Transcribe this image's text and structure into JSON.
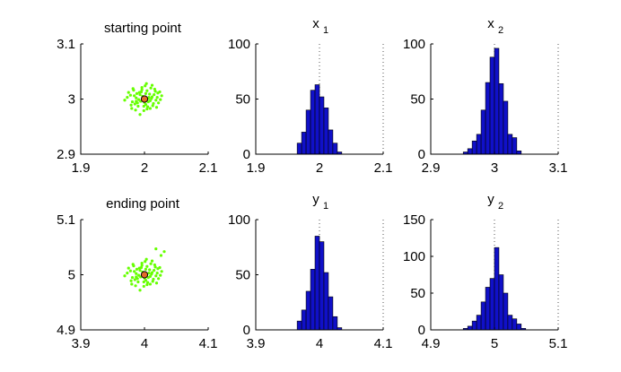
{
  "chart_data": [
    {
      "type": "scatter",
      "title": "starting point",
      "xlim": [
        1.9,
        2.1
      ],
      "ylim": [
        2.9,
        3.1
      ],
      "xticks": [
        "1.9",
        "2",
        "2.1"
      ],
      "yticks": [
        "2.9",
        "3",
        "3.1"
      ],
      "xticks_v": [
        1.9,
        2.0,
        2.1
      ],
      "yticks_v": [
        2.9,
        3.0,
        3.1
      ],
      "point_color": "#66ff00",
      "marker_color": "#e36c2a",
      "center": [
        2.0,
        3.0
      ],
      "points": [
        [
          1.978,
          3.007
        ],
        [
          1.985,
          2.991
        ],
        [
          1.992,
          3.012
        ],
        [
          2.005,
          2.986
        ],
        [
          2.012,
          3.004
        ],
        [
          2.018,
          2.998
        ],
        [
          1.996,
          3.021
        ],
        [
          2.004,
          3.015
        ],
        [
          1.987,
          3.002
        ],
        [
          2.009,
          2.983
        ],
        [
          1.981,
          2.995
        ],
        [
          2.021,
          3.011
        ],
        [
          2.014,
          2.992
        ],
        [
          1.999,
          2.979
        ],
        [
          2.001,
          3.024
        ],
        [
          1.973,
          3.003
        ],
        [
          2.025,
          2.999
        ],
        [
          1.99,
          2.987
        ],
        [
          2.008,
          3.009
        ],
        [
          1.994,
          2.996
        ],
        [
          2.016,
          3.018
        ],
        [
          1.983,
          3.016
        ],
        [
          2.002,
          2.99
        ],
        [
          1.997,
          3.005
        ],
        [
          2.011,
          3.001
        ],
        [
          1.988,
          3.01
        ],
        [
          2.006,
          2.995
        ],
        [
          1.979,
          2.989
        ],
        [
          2.019,
          2.985
        ],
        [
          2.003,
          3.028
        ],
        [
          1.993,
          2.972
        ],
        [
          2.027,
          3.006
        ],
        [
          1.969,
          2.998
        ],
        [
          2.01,
          3.02
        ],
        [
          1.986,
          2.98
        ],
        [
          2.015,
          3.008
        ],
        [
          1.995,
          3.013
        ],
        [
          2.0,
          2.994
        ],
        [
          1.982,
          3.019
        ],
        [
          2.022,
          2.993
        ],
        [
          1.998,
          3.0
        ],
        [
          2.007,
          3.003
        ],
        [
          1.991,
          2.999
        ],
        [
          2.013,
          2.988
        ],
        [
          1.984,
          3.006
        ],
        [
          2.017,
          3.014
        ],
        [
          1.989,
          2.993
        ],
        [
          2.004,
          2.982
        ],
        [
          1.996,
          3.017
        ],
        [
          2.02,
          3.003
        ],
        [
          1.975,
          3.012
        ],
        [
          2.009,
          2.997
        ],
        [
          1.993,
          3.008
        ],
        [
          2.002,
          3.01
        ],
        [
          1.987,
          2.996
        ],
        [
          2.012,
          3.025
        ],
        [
          1.999,
          2.987
        ],
        [
          2.024,
          3.013
        ],
        [
          1.98,
          2.983
        ],
        [
          2.006,
          3.001
        ]
      ]
    },
    {
      "type": "bar",
      "title": "x",
      "title_sub": "1",
      "xlim": [
        1.9,
        2.1
      ],
      "ylim": [
        0,
        100
      ],
      "xticks": [
        "1.9",
        "2",
        "2.1"
      ],
      "yticks": [
        "0",
        "50",
        "100"
      ],
      "xticks_v": [
        1.9,
        2.0,
        2.1
      ],
      "yticks_v": [
        0,
        50,
        100
      ],
      "bar_color": "#1010c8",
      "edges": [
        1.965,
        1.972,
        1.979,
        1.986,
        1.993,
        2.0,
        2.007,
        2.014,
        2.021,
        2.028,
        2.035
      ],
      "values": [
        10,
        20,
        40,
        58,
        63,
        52,
        42,
        22,
        10,
        2
      ],
      "vline": 2.0
    },
    {
      "type": "bar",
      "title": "x",
      "title_sub": "2",
      "xlim": [
        2.9,
        3.1
      ],
      "ylim": [
        0,
        100
      ],
      "xticks": [
        "2.9",
        "3",
        "3.1"
      ],
      "yticks": [
        "0",
        "50",
        "100"
      ],
      "xticks_v": [
        2.9,
        3.0,
        3.1
      ],
      "yticks_v": [
        0,
        50,
        100
      ],
      "bar_color": "#1010c8",
      "edges": [
        2.951,
        2.958,
        2.965,
        2.972,
        2.979,
        2.986,
        2.993,
        3.0,
        3.007,
        3.014,
        3.021,
        3.028,
        3.035,
        3.042
      ],
      "values": [
        2,
        5,
        12,
        18,
        40,
        65,
        88,
        96,
        64,
        48,
        18,
        15,
        3
      ],
      "vline": 3.0
    },
    {
      "type": "scatter",
      "title": "ending point",
      "xlim": [
        3.9,
        4.1
      ],
      "ylim": [
        4.9,
        5.1
      ],
      "xticks": [
        "3.9",
        "4",
        "4.1"
      ],
      "yticks": [
        "4.9",
        "5",
        "5.1"
      ],
      "xticks_v": [
        3.9,
        4.0,
        4.1
      ],
      "yticks_v": [
        4.9,
        5.0,
        5.1
      ],
      "point_color": "#66ff00",
      "marker_color": "#e36c2a",
      "center": [
        4.0,
        5.0
      ],
      "points": [
        [
          3.978,
          5.007
        ],
        [
          3.985,
          4.991
        ],
        [
          3.992,
          5.012
        ],
        [
          4.005,
          4.986
        ],
        [
          4.012,
          5.004
        ],
        [
          4.018,
          4.998
        ],
        [
          3.996,
          5.021
        ],
        [
          4.004,
          5.015
        ],
        [
          3.987,
          5.002
        ],
        [
          4.009,
          4.983
        ],
        [
          3.981,
          4.995
        ],
        [
          4.021,
          5.011
        ],
        [
          4.014,
          4.992
        ],
        [
          3.999,
          4.979
        ],
        [
          4.001,
          5.024
        ],
        [
          3.973,
          5.003
        ],
        [
          4.025,
          4.999
        ],
        [
          3.99,
          4.987
        ],
        [
          4.008,
          5.009
        ],
        [
          3.994,
          4.996
        ],
        [
          4.016,
          5.018
        ],
        [
          3.983,
          5.016
        ],
        [
          4.002,
          4.99
        ],
        [
          3.997,
          5.005
        ],
        [
          4.011,
          5.001
        ],
        [
          3.988,
          5.01
        ],
        [
          4.006,
          4.995
        ],
        [
          3.979,
          4.989
        ],
        [
          4.019,
          4.985
        ],
        [
          4.003,
          5.028
        ],
        [
          3.993,
          4.972
        ],
        [
          4.027,
          5.006
        ],
        [
          3.969,
          4.998
        ],
        [
          4.01,
          5.02
        ],
        [
          3.986,
          4.98
        ],
        [
          4.015,
          5.008
        ],
        [
          3.995,
          5.013
        ],
        [
          4.0,
          4.994
        ],
        [
          3.982,
          5.019
        ],
        [
          4.022,
          4.993
        ],
        [
          3.998,
          5.0
        ],
        [
          4.007,
          5.003
        ],
        [
          3.991,
          4.999
        ],
        [
          4.013,
          4.988
        ],
        [
          3.984,
          5.006
        ],
        [
          4.017,
          5.014
        ],
        [
          3.989,
          4.993
        ],
        [
          4.004,
          4.982
        ],
        [
          3.996,
          5.017
        ],
        [
          4.02,
          5.003
        ],
        [
          3.975,
          5.012
        ],
        [
          4.009,
          4.997
        ],
        [
          3.993,
          5.008
        ],
        [
          4.002,
          5.01
        ],
        [
          3.987,
          4.996
        ],
        [
          4.012,
          5.025
        ],
        [
          3.999,
          4.987
        ],
        [
          4.024,
          5.013
        ],
        [
          3.98,
          4.983
        ],
        [
          4.031,
          5.042
        ],
        [
          4.026,
          5.035
        ],
        [
          4.018,
          5.047
        ]
      ]
    },
    {
      "type": "bar",
      "title": "y",
      "title_sub": "1",
      "xlim": [
        3.9,
        4.1
      ],
      "ylim": [
        0,
        100
      ],
      "xticks": [
        "3.9",
        "4",
        "4.1"
      ],
      "yticks": [
        "0",
        "50",
        "100"
      ],
      "xticks_v": [
        3.9,
        4.0,
        4.1
      ],
      "yticks_v": [
        0,
        50,
        100
      ],
      "bar_color": "#1010c8",
      "edges": [
        3.965,
        3.972,
        3.979,
        3.986,
        3.993,
        4.0,
        4.007,
        4.014,
        4.021,
        4.028,
        4.035
      ],
      "values": [
        8,
        18,
        35,
        55,
        85,
        80,
        52,
        30,
        12,
        2
      ],
      "vline": 4.0
    },
    {
      "type": "bar",
      "title": "y",
      "title_sub": "2",
      "xlim": [
        4.9,
        5.1
      ],
      "ylim": [
        0,
        150
      ],
      "xticks": [
        "4.9",
        "5",
        "5.1"
      ],
      "yticks": [
        "0",
        "50",
        "100",
        "150"
      ],
      "xticks_v": [
        4.9,
        5.0,
        5.1
      ],
      "yticks_v": [
        0,
        50,
        100,
        150
      ],
      "bar_color": "#1010c8",
      "edges": [
        4.951,
        4.958,
        4.965,
        4.972,
        4.979,
        4.986,
        4.993,
        5.0,
        5.007,
        5.014,
        5.021,
        5.028,
        5.035,
        5.042,
        5.049
      ],
      "values": [
        2,
        5,
        12,
        20,
        38,
        58,
        70,
        112,
        75,
        50,
        20,
        15,
        8,
        2
      ],
      "vline": 5.0
    }
  ]
}
